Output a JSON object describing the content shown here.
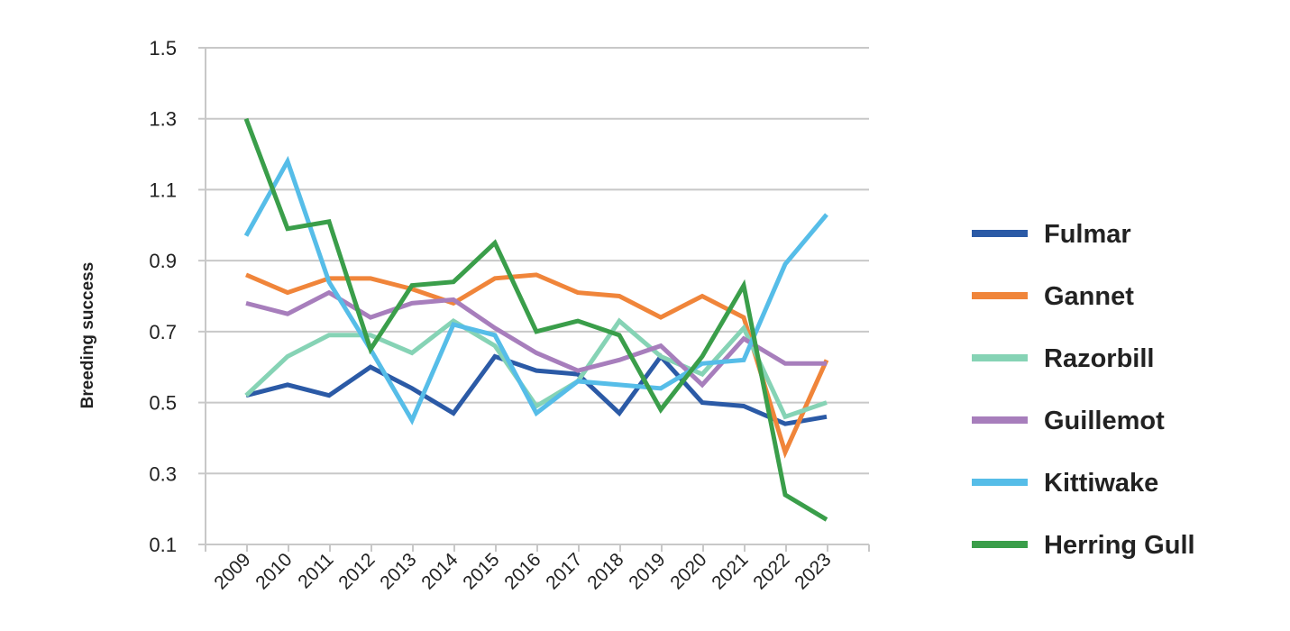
{
  "chart_data": {
    "type": "line",
    "title": "",
    "xlabel": "",
    "ylabel": "Breeding success",
    "ylim": [
      0.1,
      1.5
    ],
    "yticks": [
      "0.1",
      "0.3",
      "0.5",
      "0.7",
      "0.9",
      "1.1",
      "1.3",
      "1.5"
    ],
    "grid": "horizontal",
    "legend_position": "right",
    "categories": [
      "2009",
      "2010",
      "2011",
      "2012",
      "2013",
      "2014",
      "2015",
      "2016",
      "2017",
      "2018",
      "2019",
      "2020",
      "2021",
      "2022",
      "2023"
    ],
    "series": [
      {
        "name": "Fulmar",
        "color": "#2b5aa6",
        "values": [
          0.52,
          0.55,
          0.52,
          0.6,
          0.54,
          0.47,
          0.63,
          0.59,
          0.58,
          0.47,
          0.63,
          0.5,
          0.49,
          0.44,
          0.46
        ]
      },
      {
        "name": "Gannet",
        "color": "#f0853a",
        "values": [
          0.86,
          0.81,
          0.85,
          0.85,
          0.82,
          0.78,
          0.85,
          0.86,
          0.81,
          0.8,
          0.74,
          0.8,
          0.74,
          0.36,
          0.62
        ]
      },
      {
        "name": "Razorbill",
        "color": "#86d3b5",
        "values": [
          0.52,
          0.63,
          0.69,
          0.69,
          0.64,
          0.73,
          0.66,
          0.49,
          0.56,
          0.73,
          0.63,
          0.58,
          0.71,
          0.46,
          0.5
        ]
      },
      {
        "name": "Guillemot",
        "color": "#a77ebc",
        "values": [
          0.78,
          0.75,
          0.81,
          0.74,
          0.78,
          0.79,
          0.71,
          0.64,
          0.59,
          0.62,
          0.66,
          0.55,
          0.68,
          0.61,
          0.61
        ]
      },
      {
        "name": "Kittiwake",
        "color": "#56bde8",
        "values": [
          0.97,
          1.18,
          0.84,
          0.65,
          0.45,
          0.72,
          0.69,
          0.47,
          0.56,
          0.55,
          0.54,
          0.61,
          0.62,
          0.89,
          1.03
        ]
      },
      {
        "name": "Herring Gull",
        "color": "#3a9e4a",
        "values": [
          1.3,
          0.99,
          1.01,
          0.65,
          0.83,
          0.84,
          0.95,
          0.7,
          0.73,
          0.69,
          0.48,
          0.63,
          0.83,
          0.24,
          0.17
        ]
      }
    ]
  }
}
